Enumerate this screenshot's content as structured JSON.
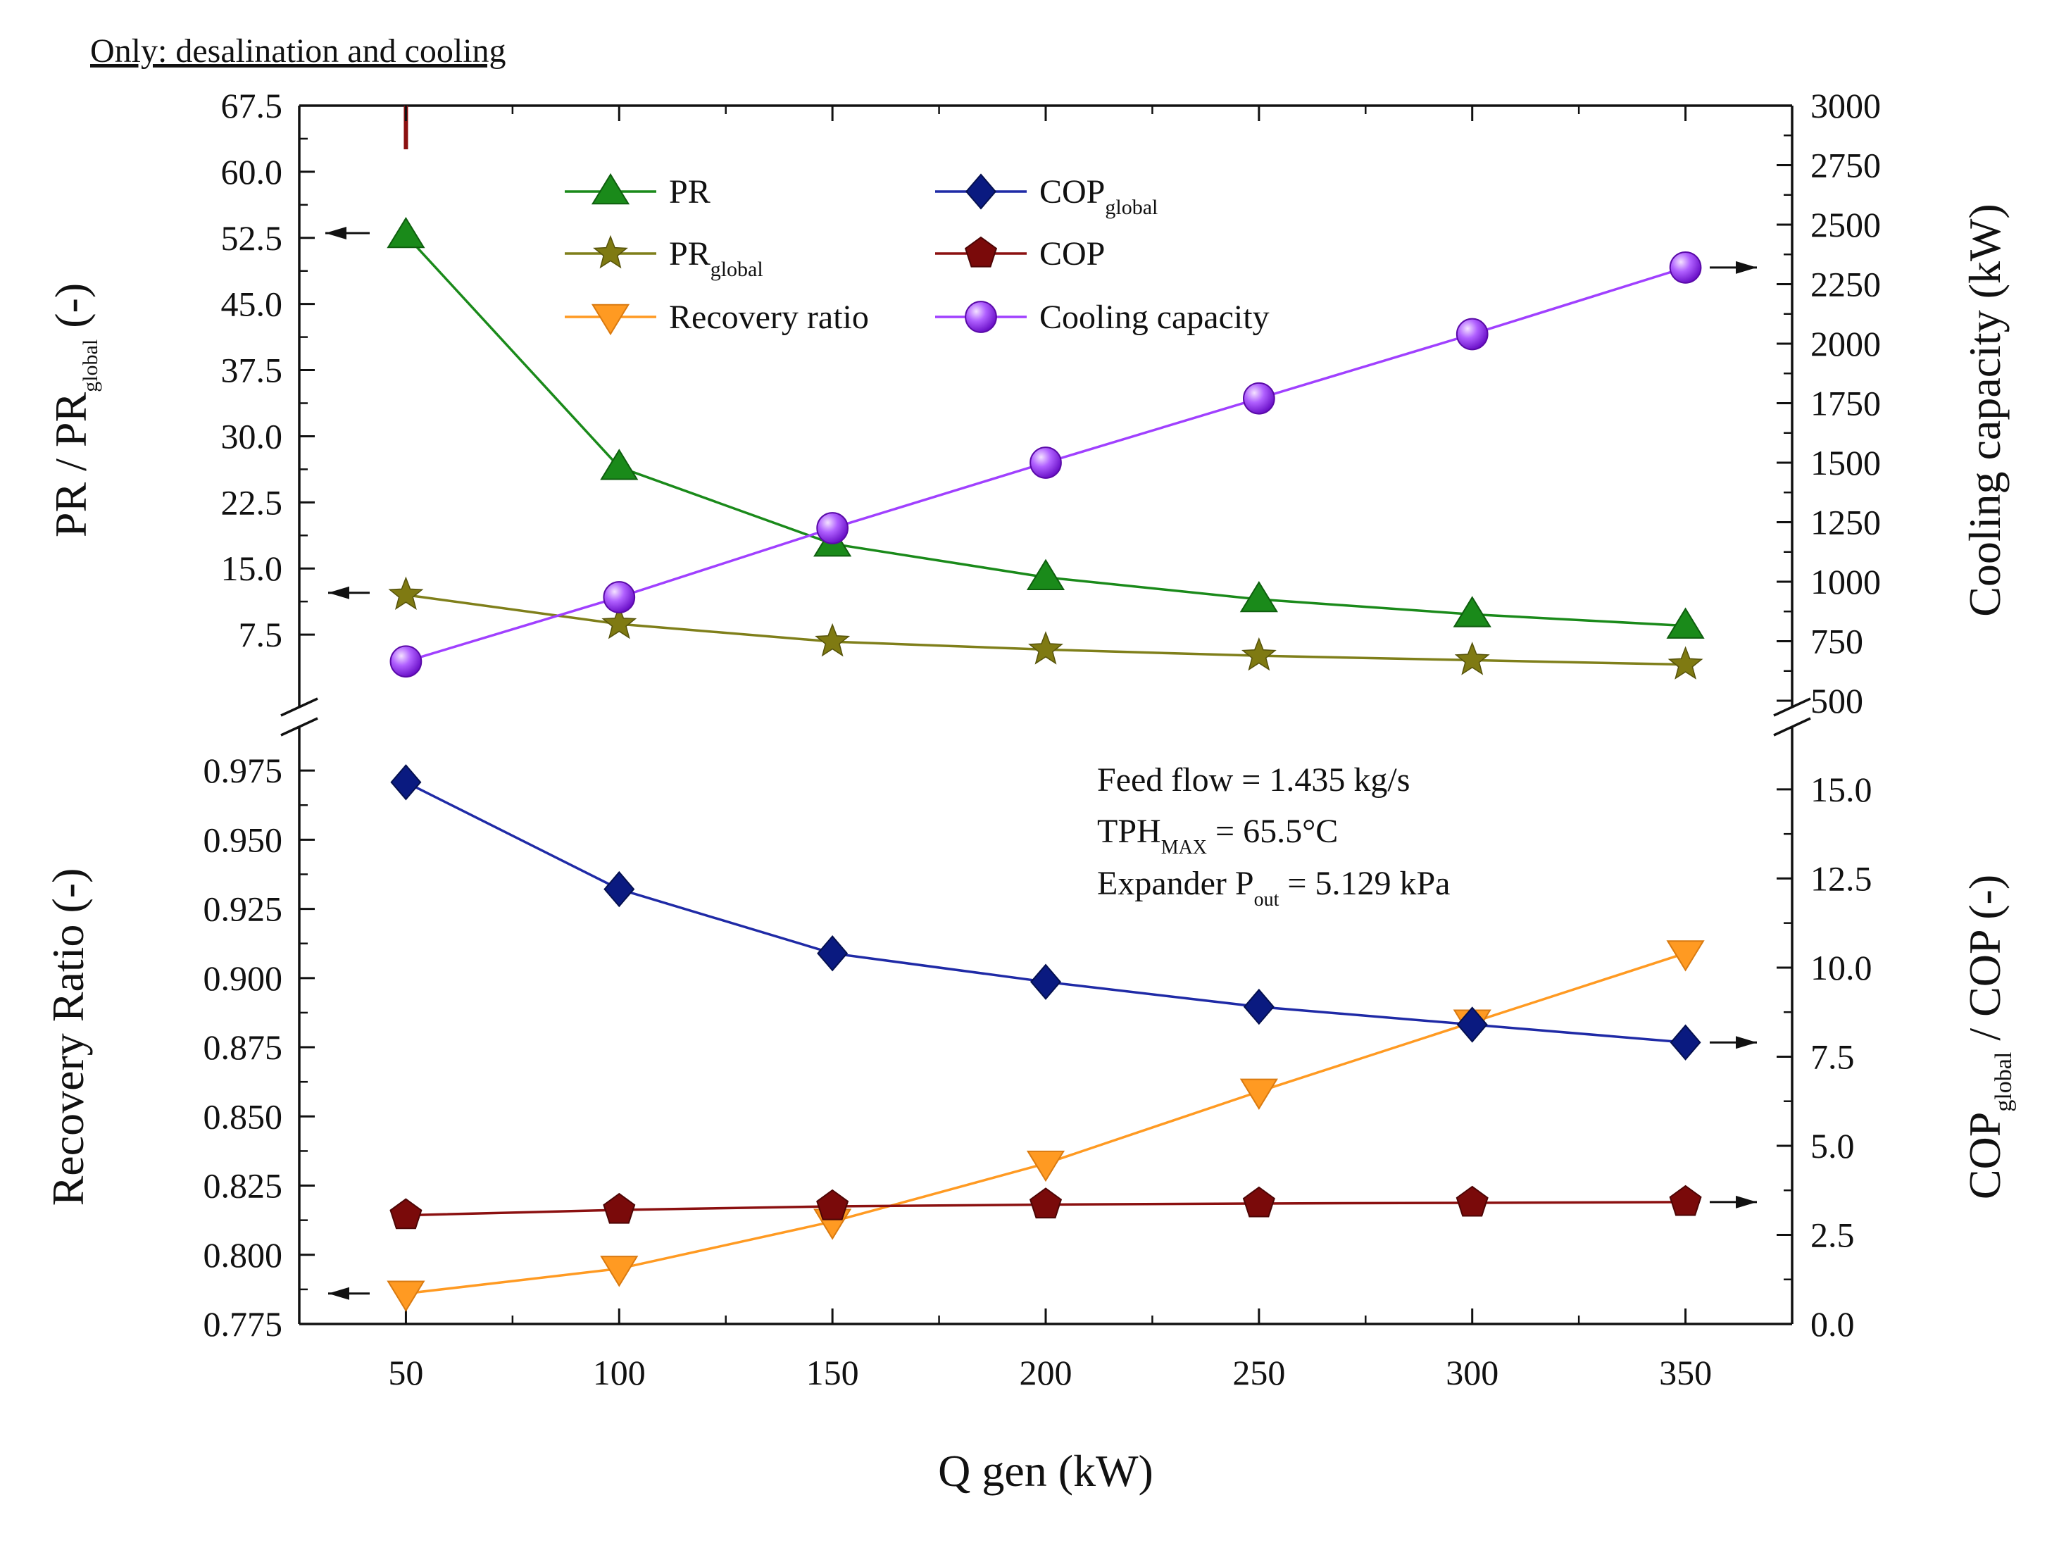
{
  "header": {
    "text": "Only: desalination and cooling"
  },
  "chart_data": {
    "type": "line",
    "x": [
      50,
      100,
      150,
      200,
      250,
      300,
      350
    ],
    "xlabel": "Q gen (kW)",
    "xlim": [
      25,
      375
    ],
    "x_ticks": [
      "50",
      "100",
      "150",
      "200",
      "250",
      "300",
      "350"
    ],
    "axes": {
      "upper_left": {
        "label_main": "PR  /  PR",
        "label_sub": "global",
        "label_end": " (-)",
        "lim": [
          0,
          67.5
        ],
        "ticks": [
          "7.5",
          "15.0",
          "22.5",
          "30.0",
          "37.5",
          "45.0",
          "52.5",
          "60.0",
          "67.5"
        ]
      },
      "upper_right": {
        "label": "Cooling capacity (kW)",
        "lim": [
          500,
          3000
        ],
        "ticks": [
          "500",
          "750",
          "1000",
          "1250",
          "1500",
          "1750",
          "2000",
          "2250",
          "2500",
          "2750",
          "3000"
        ]
      },
      "lower_left": {
        "label": "Recovery Ratio (-)",
        "lim": [
          0.775,
          0.9875
        ],
        "ticks": [
          "0.775",
          "0.800",
          "0.825",
          "0.850",
          "0.875",
          "0.900",
          "0.925",
          "0.950",
          "0.975"
        ]
      },
      "lower_right": {
        "label_main": "COP",
        "label_sub": "global",
        "label_end": " / COP (-)",
        "lim": [
          0,
          16.5
        ],
        "ticks": [
          "0.0",
          "2.5",
          "5.0",
          "7.5",
          "10.0",
          "12.5",
          "15.0"
        ]
      }
    },
    "series": [
      {
        "name": "PR",
        "name_sub": "",
        "axis": "upper_left",
        "color": "#1a8a1a",
        "marker": "triangle-up",
        "values": [
          52.8,
          26.5,
          17.8,
          14.0,
          11.5,
          9.8,
          8.5
        ]
      },
      {
        "name": "PR",
        "name_sub": "global",
        "axis": "upper_left",
        "color": "#7f7f1a",
        "marker": "star",
        "values": [
          12.0,
          8.7,
          6.7,
          5.8,
          5.1,
          4.6,
          4.1
        ]
      },
      {
        "name": "Recovery ratio",
        "name_sub": "",
        "axis": "lower_left",
        "color": "#ff9a22",
        "marker": "triangle-down",
        "values": [
          0.786,
          0.795,
          0.812,
          0.833,
          0.859,
          0.884,
          0.909
        ]
      },
      {
        "name": "COP",
        "name_sub": "global",
        "axis": "lower_right",
        "color": "#1f2aa6",
        "marker": "diamond",
        "values": [
          15.2,
          12.2,
          10.4,
          9.6,
          8.9,
          8.4,
          7.9
        ]
      },
      {
        "name": "COP",
        "name_sub": "",
        "axis": "lower_right",
        "color": "#8b1010",
        "marker": "pentagon",
        "values": [
          3.05,
          3.2,
          3.3,
          3.35,
          3.38,
          3.4,
          3.42
        ]
      },
      {
        "name": "Cooling capacity",
        "name_sub": "",
        "axis": "upper_right",
        "color": "#a040ff",
        "marker": "sphere",
        "values": [
          665,
          935,
          1225,
          1500,
          1770,
          2040,
          2320
        ]
      }
    ],
    "annotations": [
      {
        "text": "Feed flow = 1.435 kg/s"
      },
      {
        "pre": "TPH",
        "sub": "MAX",
        "post": " = 65.5°C"
      },
      {
        "pre": "Expander P",
        "sub": "out",
        "post": " = 5.129 kPa"
      }
    ]
  }
}
